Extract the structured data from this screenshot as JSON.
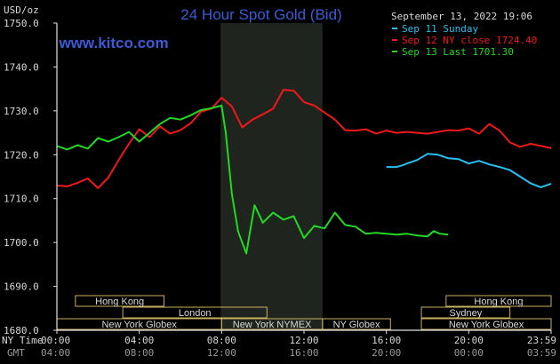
{
  "chart_data": {
    "type": "line",
    "title": "24 Hour Spot Gold (Bid)",
    "brand": "www.kitco.com",
    "currency_label": "USD/oz",
    "timestamp": "September 13, 2022 19:06",
    "ylim": [
      1680,
      1750
    ],
    "xlim": [
      0,
      24
    ],
    "y_ticks": [
      {
        "value": 1750,
        "label": "1750.0"
      },
      {
        "value": 1740,
        "label": "1740.0"
      },
      {
        "value": 1730,
        "label": "1730.0"
      },
      {
        "value": 1720,
        "label": "1720.0"
      },
      {
        "value": 1710,
        "label": "1710.0"
      },
      {
        "value": 1700,
        "label": "1700.0"
      },
      {
        "value": 1690,
        "label": "1690.0"
      },
      {
        "value": 1680,
        "label": "1680.0"
      }
    ],
    "x_label_ny": "NY Time",
    "x_label_gmt": "GMT",
    "x_ticks_ny": [
      {
        "x": 0,
        "label": "00:00"
      },
      {
        "x": 4,
        "label": "04:00"
      },
      {
        "x": 8,
        "label": "08:00"
      },
      {
        "x": 12,
        "label": "12:00"
      },
      {
        "x": 16,
        "label": "16:00"
      },
      {
        "x": 20,
        "label": "20:00"
      },
      {
        "x": 24,
        "label": "23:59"
      }
    ],
    "x_ticks_gmt": [
      {
        "x": 0,
        "label": "04:00"
      },
      {
        "x": 4,
        "label": "08:00"
      },
      {
        "x": 8,
        "label": "12:00"
      },
      {
        "x": 12,
        "label": "16:00"
      },
      {
        "x": 16,
        "label": "20:00"
      },
      {
        "x": 20,
        "label": "00:00"
      },
      {
        "x": 24,
        "label": "03:59"
      }
    ],
    "highlight_range": [
      7.95,
      12.9
    ],
    "sessions": [
      {
        "label": "Hong Kong",
        "start": 0.9,
        "end": 5.2,
        "row": 0
      },
      {
        "label": "Hong Kong",
        "start": 18.9,
        "end": 24,
        "row": 0
      },
      {
        "label": "London",
        "start": 3.2,
        "end": 10.2,
        "row": 1
      },
      {
        "label": "Sydney",
        "start": 17.7,
        "end": 22.0,
        "row": 1
      },
      {
        "label": "New York Globex",
        "start": 0,
        "end": 8.0,
        "row": 2
      },
      {
        "label": "New York NYMEX",
        "start": 8.0,
        "end": 12.9,
        "row": 2
      },
      {
        "label": "NY Globex",
        "start": 12.9,
        "end": 16.2,
        "row": 2
      },
      {
        "label": "New York Globex",
        "start": 17.7,
        "end": 24,
        "row": 2
      }
    ],
    "series": [
      {
        "name": "Sep 11 Sunday",
        "color": "#27c0f0",
        "x": [
          16.0,
          16.5,
          16.8,
          17.0,
          17.5,
          18.0,
          18.5,
          19.0,
          19.5,
          20.0,
          20.5,
          21.0,
          21.5,
          22.0,
          22.5,
          23.0,
          23.5,
          24.0
        ],
        "y": [
          1717.2,
          1717.2,
          1717.6,
          1718.0,
          1718.8,
          1720.2,
          1720.0,
          1719.2,
          1719.0,
          1718.0,
          1718.6,
          1717.8,
          1717.2,
          1716.5,
          1715.0,
          1713.5,
          1712.6,
          1713.4
        ]
      },
      {
        "name": "Sep 12 NY close 1724.40",
        "color": "#f01818",
        "x": [
          0,
          0.5,
          1.0,
          1.5,
          2.0,
          2.5,
          3.0,
          3.5,
          4.0,
          4.5,
          5.0,
          5.5,
          6.0,
          6.5,
          7.0,
          7.5,
          8.0,
          8.5,
          9.0,
          9.5,
          10.0,
          10.5,
          11.0,
          11.5,
          12.0,
          12.5,
          13.0,
          13.5,
          14.0,
          14.5,
          15.0,
          15.5,
          16.0,
          16.5,
          17.0,
          17.5,
          18.0,
          18.5,
          19.0,
          19.5,
          20.0,
          20.5,
          21.0,
          21.5,
          22.0,
          22.5,
          23.0,
          23.5,
          24.0
        ],
        "y": [
          1713.0,
          1712.8,
          1713.6,
          1714.6,
          1712.4,
          1714.8,
          1718.8,
          1722.5,
          1725.8,
          1724.0,
          1726.5,
          1724.8,
          1725.6,
          1727.2,
          1729.8,
          1730.5,
          1733.0,
          1731.0,
          1726.2,
          1728.0,
          1729.2,
          1730.5,
          1734.8,
          1734.6,
          1732.0,
          1731.2,
          1729.6,
          1728.0,
          1725.6,
          1725.5,
          1725.8,
          1724.8,
          1725.5,
          1725.0,
          1725.2,
          1725.0,
          1724.8,
          1725.2,
          1725.6,
          1725.5,
          1726.0,
          1724.8,
          1727.0,
          1725.5,
          1722.8,
          1721.8,
          1722.5,
          1722.0,
          1721.5
        ]
      },
      {
        "name": "Sep 13 Last 1701.30",
        "color": "#22d822",
        "x": [
          0,
          0.5,
          1.0,
          1.5,
          2.0,
          2.5,
          3.0,
          3.5,
          4.0,
          4.5,
          5.0,
          5.5,
          6.0,
          6.5,
          7.0,
          7.5,
          8.0,
          8.2,
          8.5,
          8.8,
          9.2,
          9.6,
          10.0,
          10.5,
          11.0,
          11.5,
          12.0,
          12.5,
          13.0,
          13.5,
          14.0,
          14.5,
          15.0,
          15.5,
          16.0,
          16.5,
          17.0,
          17.5,
          18.0,
          18.3,
          18.6,
          19.0
        ],
        "y": [
          1722.0,
          1721.2,
          1722.2,
          1721.4,
          1723.8,
          1723.0,
          1724.0,
          1725.2,
          1723.0,
          1725.0,
          1727.0,
          1728.4,
          1728.0,
          1729.0,
          1730.2,
          1730.6,
          1731.2,
          1725.0,
          1711.0,
          1702.5,
          1697.5,
          1708.5,
          1704.5,
          1706.8,
          1705.2,
          1706.0,
          1701.0,
          1703.8,
          1703.2,
          1706.8,
          1704.0,
          1703.6,
          1702.0,
          1702.2,
          1702.0,
          1701.8,
          1702.0,
          1701.6,
          1701.4,
          1702.6,
          1702.0,
          1701.8
        ]
      }
    ],
    "legend_placement": "top-right",
    "grid": false
  }
}
